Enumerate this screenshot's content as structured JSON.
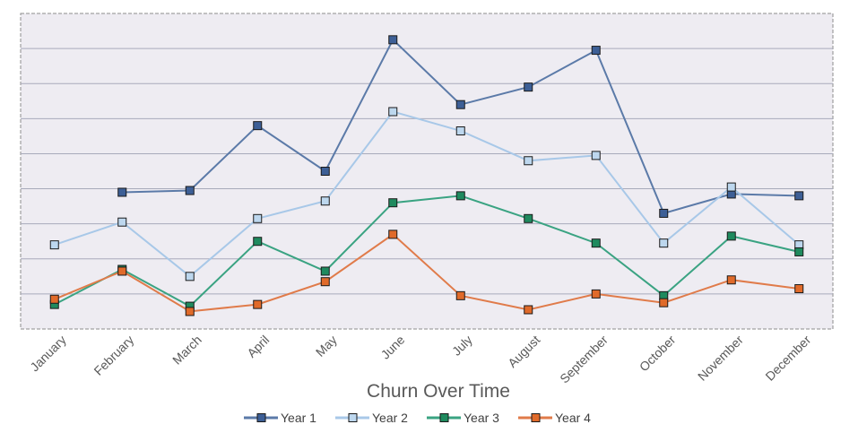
{
  "chart_data": {
    "type": "line",
    "title": "Churn Over Time",
    "xlabel": "",
    "ylabel": "",
    "categories": [
      "January",
      "February",
      "March",
      "April",
      "May",
      "June",
      "July",
      "August",
      "September",
      "October",
      "November",
      "December"
    ],
    "ylim": [
      0,
      9
    ],
    "grid": true,
    "y_tick_labels_shown": false,
    "legend_position": "bottom",
    "series": [
      {
        "name": "Year 1",
        "color": "#5b7aa8",
        "marker_fill": "#3d5f96",
        "values": [
          null,
          3.9,
          3.95,
          5.8,
          4.5,
          8.25,
          6.4,
          6.9,
          7.95,
          3.3,
          3.85,
          3.8
        ]
      },
      {
        "name": "Year 2",
        "color": "#a8c8e8",
        "marker_fill": "#bdd7ee",
        "values": [
          2.4,
          3.05,
          1.5,
          3.15,
          3.65,
          6.2,
          5.65,
          4.8,
          4.95,
          2.45,
          4.05,
          2.4
        ]
      },
      {
        "name": "Year 3",
        "color": "#3aa382",
        "marker_fill": "#1f8a5e",
        "values": [
          0.7,
          1.7,
          0.65,
          2.5,
          1.65,
          3.6,
          3.8,
          3.15,
          2.45,
          0.95,
          2.65,
          2.2
        ]
      },
      {
        "name": "Year 4",
        "color": "#e07b4a",
        "marker_fill": "#e06a2a",
        "values": [
          0.85,
          1.65,
          0.5,
          0.7,
          1.35,
          2.7,
          0.95,
          0.55,
          1.0,
          0.75,
          1.4,
          1.15
        ]
      }
    ]
  }
}
